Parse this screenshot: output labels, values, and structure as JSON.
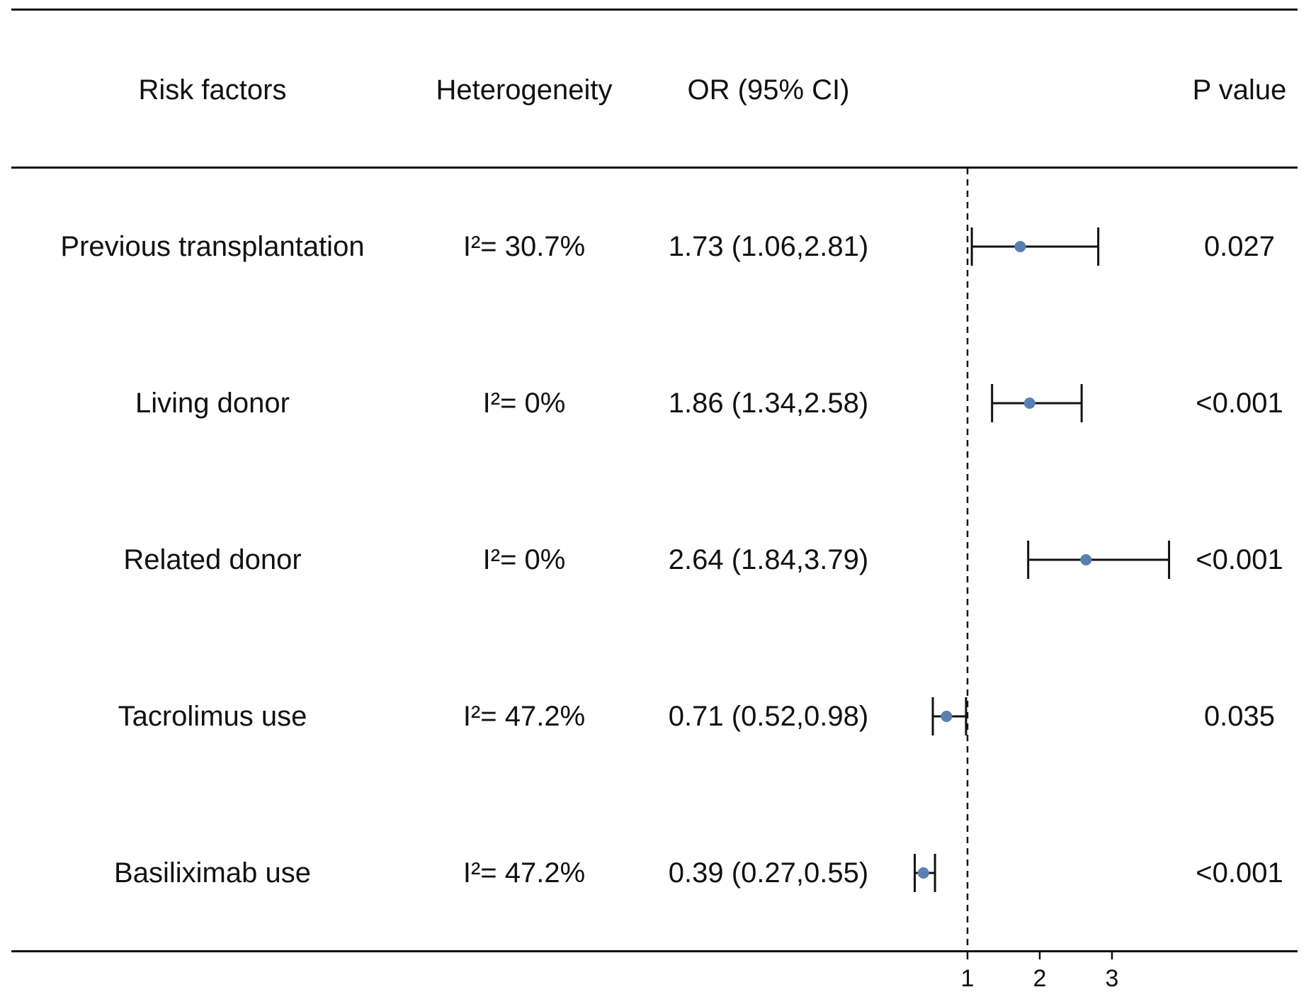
{
  "header": {
    "factor": "Risk factors",
    "heterogeneity": "Heterogeneity",
    "or": "OR (95% CI)",
    "p": "P value"
  },
  "rows": [
    {
      "factor": "Previous transplantation",
      "heterogeneity": "I²= 30.7%",
      "or_text": "1.73 (1.06,2.81)",
      "p": "0.027"
    },
    {
      "factor": "Living donor",
      "heterogeneity": "I²= 0%",
      "or_text": "1.86 (1.34,2.58)",
      "p": "<0.001"
    },
    {
      "factor": "Related donor",
      "heterogeneity": "I²= 0%",
      "or_text": "2.64 (1.84,3.79)",
      "p": "<0.001"
    },
    {
      "factor": "Tacrolimus use",
      "heterogeneity": "I²= 47.2%",
      "or_text": "0.71 (0.52,0.98)",
      "p": "0.035"
    },
    {
      "factor": "Basiliximab use",
      "heterogeneity": "I²= 47.2%",
      "or_text": "0.39 (0.27,0.55)",
      "p": "<0.001"
    }
  ],
  "chart_data": {
    "type": "scatter",
    "categories": [
      "Previous transplantation",
      "Living donor",
      "Related donor",
      "Tacrolimus use",
      "Basiliximab use"
    ],
    "or": [
      1.73,
      1.86,
      2.64,
      0.71,
      0.39
    ],
    "ci_lower": [
      1.06,
      1.34,
      1.84,
      0.52,
      0.27
    ],
    "ci_upper": [
      2.81,
      2.58,
      3.79,
      0.98,
      0.55
    ],
    "reference_line": 1,
    "xticks": [
      1,
      2,
      3
    ],
    "xlim": [
      0,
      4
    ],
    "point_color": "#5b7fb0",
    "line_color": "#111111"
  }
}
